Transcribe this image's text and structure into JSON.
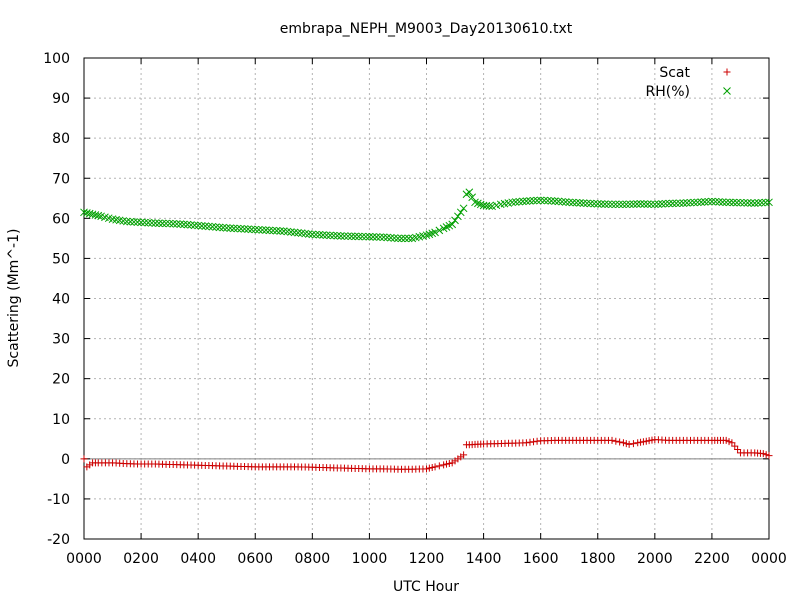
{
  "chart_data": {
    "type": "scatter",
    "title": "embrapa_NEPH_M9003_Day20130610.txt",
    "xlabel": "UTC Hour",
    "ylabel": "Scattering (Mm^-1)",
    "xlim": [
      0,
      24
    ],
    "ylim": [
      -20,
      100
    ],
    "x_tick_labels": [
      "0000",
      "0200",
      "0400",
      "0600",
      "0800",
      "1000",
      "1200",
      "1400",
      "1600",
      "1800",
      "2000",
      "2200",
      "0000"
    ],
    "y_tick_labels": [
      "-20",
      "-10",
      "0",
      "10",
      "20",
      "30",
      "40",
      "50",
      "60",
      "70",
      "80",
      "90",
      "100"
    ],
    "grid": true,
    "zero_line": true,
    "legend_position": "top-right",
    "series": [
      {
        "name": "Scat",
        "marker": "+",
        "color": "#cc0000",
        "x": [
          0.0,
          0.1,
          0.3,
          0.5,
          1.0,
          1.5,
          2.0,
          2.5,
          3.0,
          3.5,
          4.0,
          4.5,
          5.0,
          5.5,
          6.0,
          6.5,
          7.0,
          7.5,
          8.0,
          8.5,
          9.0,
          9.5,
          10.0,
          10.5,
          11.0,
          11.5,
          12.0,
          12.3,
          12.6,
          12.9,
          13.1,
          13.3,
          13.4,
          13.5,
          13.7,
          14.0,
          14.5,
          15.0,
          15.5,
          16.0,
          16.5,
          17.0,
          17.5,
          18.0,
          18.5,
          18.9,
          19.1,
          19.4,
          19.7,
          20.0,
          20.5,
          21.0,
          21.5,
          22.0,
          22.3,
          22.5,
          22.7,
          23.0,
          23.5,
          23.8,
          24.0
        ],
        "y": [
          0.0,
          -2.0,
          -1.0,
          -1.0,
          -1.0,
          -1.2,
          -1.3,
          -1.3,
          -1.4,
          -1.5,
          -1.6,
          -1.7,
          -1.8,
          -1.9,
          -2.0,
          -2.0,
          -2.0,
          -2.0,
          -2.1,
          -2.2,
          -2.3,
          -2.4,
          -2.5,
          -2.5,
          -2.6,
          -2.6,
          -2.5,
          -2.0,
          -1.5,
          -1.0,
          0.0,
          1.0,
          3.5,
          3.5,
          3.6,
          3.7,
          3.8,
          3.9,
          4.0,
          4.5,
          4.6,
          4.6,
          4.6,
          4.6,
          4.6,
          4.0,
          3.6,
          4.0,
          4.4,
          4.8,
          4.6,
          4.6,
          4.6,
          4.6,
          4.6,
          4.6,
          4.0,
          1.5,
          1.5,
          1.3,
          0.8
        ]
      },
      {
        "name": "RH(%)",
        "marker": "x",
        "color": "#00a000",
        "x": [
          0.0,
          0.3,
          0.6,
          1.0,
          1.5,
          2.0,
          2.5,
          3.0,
          3.5,
          4.0,
          4.5,
          5.0,
          5.5,
          6.0,
          6.5,
          7.0,
          7.5,
          8.0,
          8.5,
          9.0,
          9.5,
          10.0,
          10.5,
          11.0,
          11.5,
          12.0,
          12.3,
          12.6,
          12.9,
          13.1,
          13.3,
          13.4,
          13.5,
          13.7,
          14.0,
          14.3,
          14.6,
          15.0,
          15.5,
          16.0,
          16.5,
          17.0,
          17.5,
          18.0,
          18.5,
          19.0,
          19.5,
          20.0,
          20.5,
          21.0,
          21.5,
          22.0,
          22.5,
          23.0,
          23.5,
          24.0
        ],
        "y": [
          61.5,
          61.0,
          60.5,
          59.8,
          59.2,
          59.0,
          58.8,
          58.7,
          58.5,
          58.2,
          57.9,
          57.6,
          57.4,
          57.2,
          57.0,
          56.8,
          56.4,
          56.0,
          55.8,
          55.6,
          55.5,
          55.4,
          55.3,
          55.0,
          55.0,
          55.8,
          56.5,
          57.5,
          58.5,
          60.5,
          62.5,
          66.0,
          66.5,
          64.0,
          63.2,
          63.0,
          63.5,
          64.0,
          64.3,
          64.5,
          64.3,
          64.0,
          63.8,
          63.6,
          63.5,
          63.5,
          63.6,
          63.5,
          63.7,
          63.8,
          64.0,
          64.2,
          64.0,
          63.9,
          63.8,
          64.0
        ]
      }
    ]
  }
}
